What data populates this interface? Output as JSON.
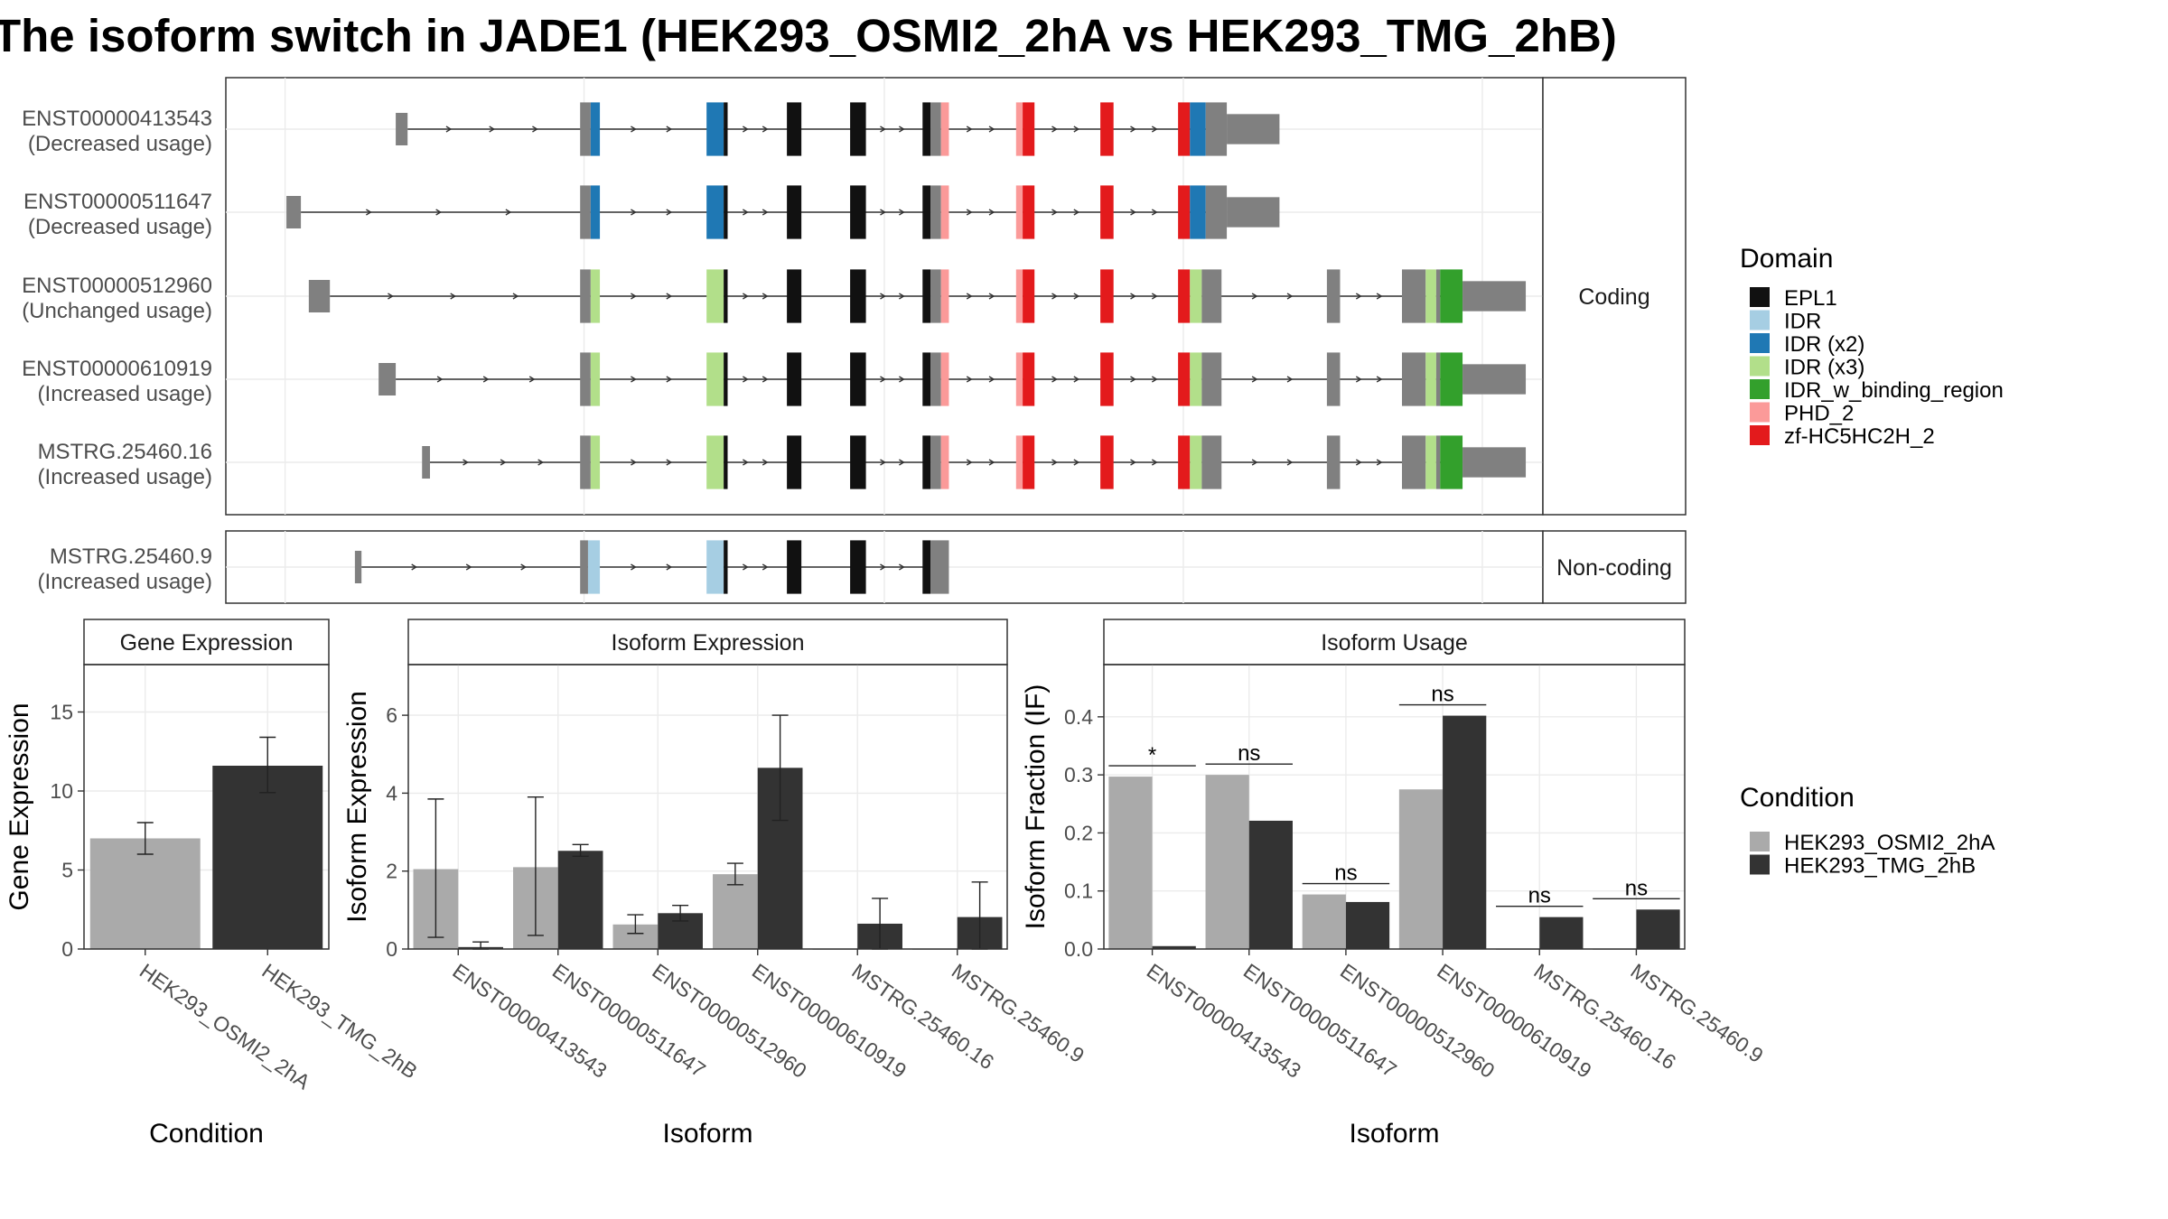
{
  "title": "The isoform switch in JADE1 (HEK293_OSMI2_2hA vs HEK293_TMG_2hB)",
  "domain_legend": {
    "title": "Domain",
    "items": [
      {
        "label": "EPL1",
        "color": "#111111"
      },
      {
        "label": "IDR",
        "color": "#a6cee3"
      },
      {
        "label": "IDR (x2)",
        "color": "#1f78b4"
      },
      {
        "label": "IDR (x3)",
        "color": "#b2df8a"
      },
      {
        "label": "IDR_w_binding_region",
        "color": "#33a02c"
      },
      {
        "label": "PHD_2",
        "color": "#fb9a99"
      },
      {
        "label": "zf-HC5HC2H_2",
        "color": "#e31a1c"
      }
    ]
  },
  "condition_legend": {
    "title": "Condition",
    "items": [
      {
        "label": "HEK293_OSMI2_2hA",
        "color": "#aaaaaa"
      },
      {
        "label": "HEK293_TMG_2hB",
        "color": "#333333"
      }
    ]
  },
  "structure": {
    "coding_label": "Coding",
    "noncoding_label": "Non-coding",
    "coding": [
      {
        "id": "ENST00000413543",
        "usage": "(Decreased usage)",
        "variant": "A",
        "first_exon_start": 0.129,
        "first_exon_end": 0.138
      },
      {
        "id": "ENST00000511647",
        "usage": "(Decreased usage)",
        "variant": "A",
        "first_exon_start": 0.046,
        "first_exon_end": 0.057
      },
      {
        "id": "ENST00000512960",
        "usage": "(Unchanged usage)",
        "variant": "B",
        "first_exon_start": 0.063,
        "first_exon_end": 0.079
      },
      {
        "id": "ENST00000610919",
        "usage": "(Increased usage)",
        "variant": "B",
        "first_exon_start": 0.116,
        "first_exon_end": 0.129
      },
      {
        "id": "MSTRG.25460.16",
        "usage": "(Increased usage)",
        "variant": "B",
        "first_exon_start": 0.149,
        "first_exon_end": 0.155
      }
    ],
    "noncoding": [
      {
        "id": "MSTRG.25460.9",
        "usage": "(Increased usage)",
        "variant": "C",
        "first_exon_start": 0.098,
        "first_exon_end": 0.103
      }
    ]
  },
  "chart_data": [
    {
      "type": "bar",
      "title": "Gene Expression",
      "xlabel": "Condition",
      "ylabel": "Gene Expression",
      "ylim": [
        0,
        18
      ],
      "yticks": [
        "0",
        "5",
        "10",
        "15"
      ],
      "categories": [
        "HEK293_OSMI2_2hA",
        "HEK293_TMG_2hB"
      ],
      "values": [
        7.0,
        11.6
      ],
      "error_low": [
        6.0,
        9.9
      ],
      "error_high": [
        8.0,
        13.4
      ]
    },
    {
      "type": "bar",
      "title": "Isoform Expression",
      "xlabel": "Isoform",
      "ylabel": "Isoform Expression",
      "ylim": [
        0,
        7.3
      ],
      "yticks": [
        "0",
        "2",
        "4",
        "6"
      ],
      "categories": [
        "ENST00000413543",
        "ENST00000511647",
        "ENST00000512960",
        "ENST00000610919",
        "MSTRG.25460.16",
        "MSTRG.25460.9"
      ],
      "series": [
        {
          "name": "HEK293_OSMI2_2hA",
          "values": [
            2.05,
            2.1,
            0.63,
            1.92,
            0.0,
            0.0
          ],
          "error_low": [
            0.3,
            0.35,
            0.4,
            1.65,
            0.0,
            0.0
          ],
          "error_high": [
            3.85,
            3.9,
            0.88,
            2.2,
            0.0,
            0.0
          ]
        },
        {
          "name": "HEK293_TMG_2hB",
          "values": [
            0.05,
            2.52,
            0.92,
            4.65,
            0.65,
            0.82
          ],
          "error_low": [
            0.0,
            2.38,
            0.72,
            3.3,
            0.0,
            0.0
          ],
          "error_high": [
            0.18,
            2.68,
            1.12,
            6.0,
            1.3,
            1.72
          ]
        }
      ]
    },
    {
      "type": "bar",
      "title": "Isoform Usage",
      "xlabel": "Isoform",
      "ylabel": "Isoform Fraction (IF)",
      "ylim": [
        0,
        0.49
      ],
      "yticks": [
        "0.0",
        "0.1",
        "0.2",
        "0.3",
        "0.4"
      ],
      "categories": [
        "ENST00000413543",
        "ENST00000511647",
        "ENST00000512960",
        "ENST00000610919",
        "MSTRG.25460.16",
        "MSTRG.25460.9"
      ],
      "series": [
        {
          "name": "HEK293_OSMI2_2hA",
          "values": [
            0.297,
            0.3,
            0.094,
            0.275,
            0.0,
            0.0
          ]
        },
        {
          "name": "HEK293_TMG_2hB",
          "values": [
            0.005,
            0.221,
            0.081,
            0.402,
            0.055,
            0.068
          ]
        }
      ],
      "significance": [
        "*",
        "ns",
        "ns",
        "ns",
        "ns",
        "ns"
      ]
    }
  ]
}
